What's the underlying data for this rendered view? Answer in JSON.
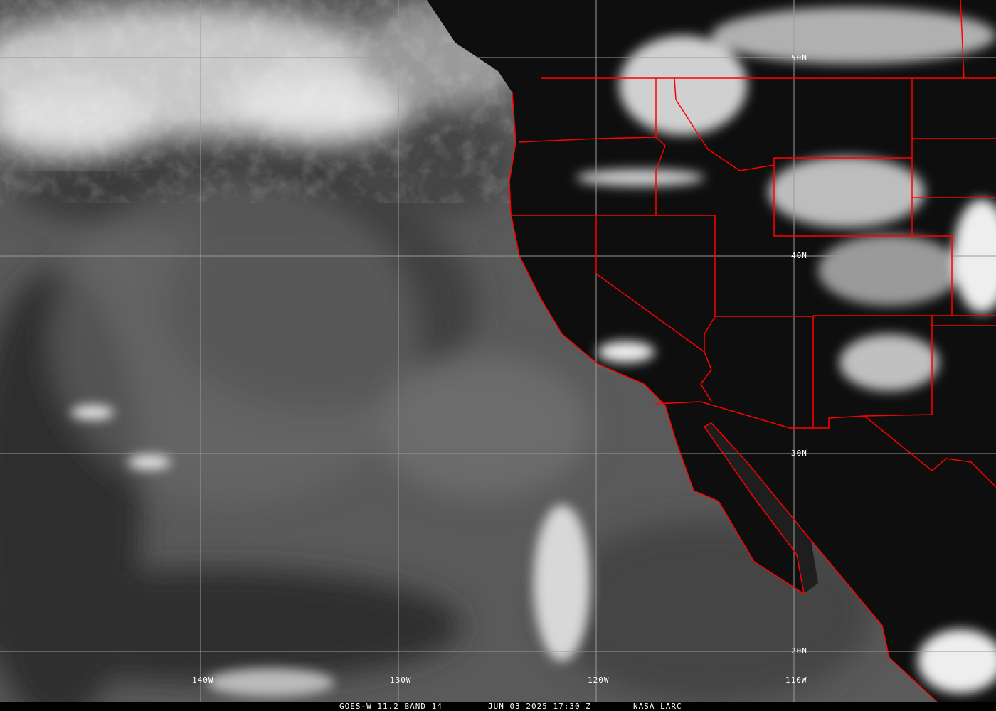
{
  "caption": {
    "satellite": "GOES-W 11.2 BAND 14",
    "datetime": "JUN 03 2025 17:30 Z",
    "source": "NASA LARC"
  },
  "grid": {
    "latitudes": [
      "50N",
      "40N",
      "30N",
      "20N"
    ],
    "longitudes": [
      "140W",
      "130W",
      "120W",
      "110W"
    ]
  },
  "colors": {
    "boundaries": "#ff0000",
    "gridlines": "#9a9a9a",
    "land": "#0e0e0e",
    "ocean": "#5a5a5a",
    "clouds": "#e8e8e8"
  }
}
